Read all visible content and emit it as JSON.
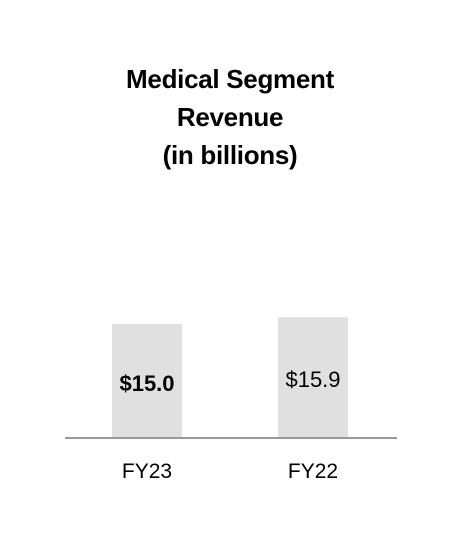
{
  "chart_data": {
    "type": "bar",
    "title_lines": [
      "Medical Segment",
      "Revenue",
      "(in billions)"
    ],
    "categories": [
      "FY23",
      "FY22"
    ],
    "values": [
      15.0,
      15.9
    ],
    "data_labels": [
      "$15.0",
      "$15.9"
    ],
    "data_label_bold": [
      true,
      false
    ],
    "xlabel": "",
    "ylabel": "",
    "grid": false,
    "legend": "none",
    "colors": {
      "bar": "#e0e0e0",
      "baseline": "#999999",
      "text": "#000000"
    }
  }
}
